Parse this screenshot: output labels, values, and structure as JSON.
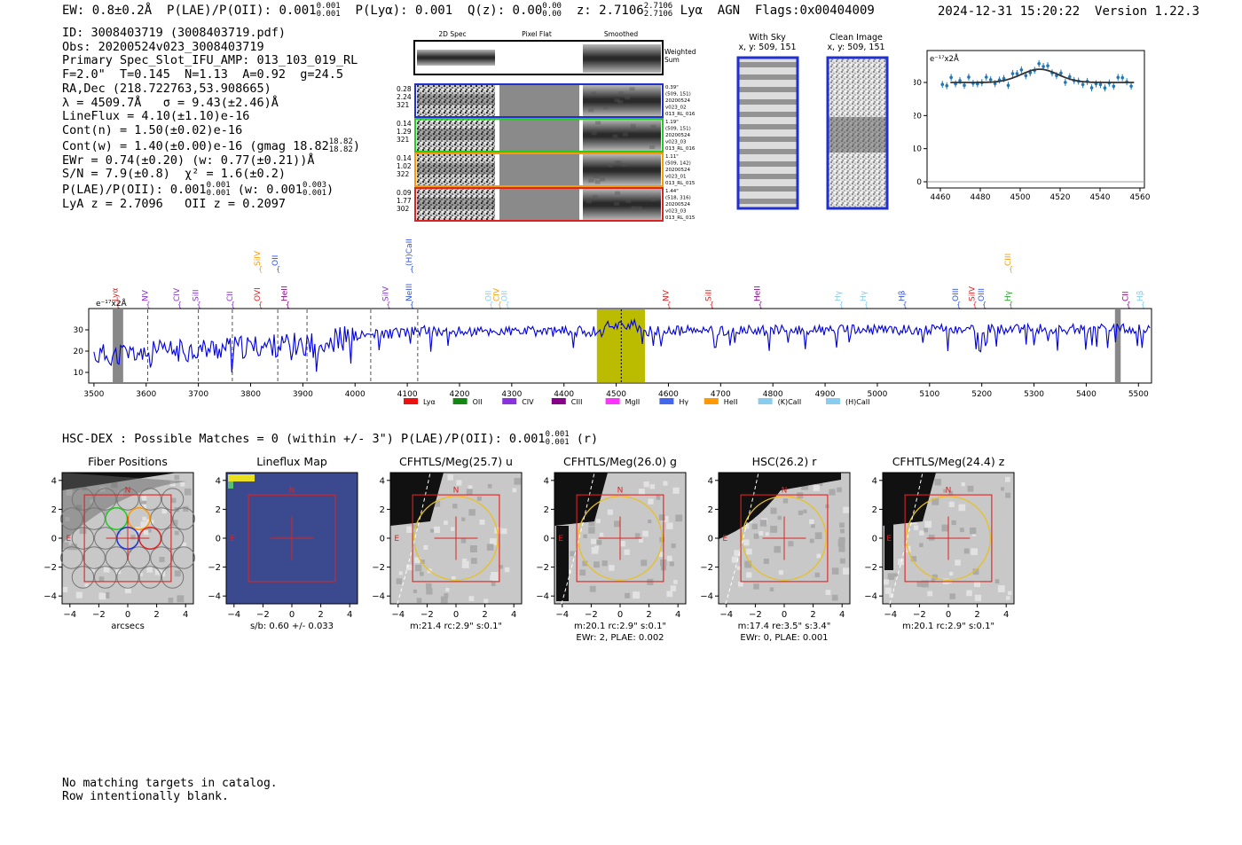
{
  "header": {
    "ew": "EW: 0.8±0.2Å",
    "plae": "P(LAE)/P(OII): 0.001",
    "plae_hi": "0.001",
    "plae_lo": "0.001",
    "plya": "P(Lyα): 0.001",
    "qz": "Q(z): 0.00",
    "qz_hi": "0.00",
    "qz_lo": "0.00",
    "z": "z: 2.7106",
    "z_hi": "2.7106",
    "z_lo": "2.7106",
    "lya": "Lyα",
    "agn": "AGN",
    "flags": "Flags:0x00404009",
    "datetime": "2024-12-31 15:20:22",
    "version": "Version 1.22.3"
  },
  "info": {
    "id": "ID: 3008403719 (3008403719.pdf)",
    "obs": "Obs: 20200524v023_3008403719",
    "primary": "Primary Spec_Slot_IFU_AMP: 013_103_019_RL",
    "fparams": "F=2.0\"  T=0.145  N=1.13  A=0.92  g=24.5",
    "radec": "RA,Dec (218.722763,53.908665)",
    "lambda": "λ = 4509.7Å   σ = 9.43(±2.46)Å",
    "lineflux": "LineFlux = 4.10(±1.10)e-16",
    "contn": "Cont(n) = 1.50(±0.02)e-16",
    "contw": "Cont(w) = 1.40(±0.00)e-16 (gmag 18.82",
    "contw_hi": "18.82",
    "contw_lo": "18.82",
    "contw_end": ")",
    "ewr": "EWr = 0.74(±0.20) (w: 0.77(±0.21))Å",
    "sn": "S/N = 7.9(±0.8)  χ² = 1.6(±0.2)",
    "plae": "P(LAE)/P(OII): 0.001",
    "plae_hi": "0.001",
    "plae_lo": "0.001",
    "plae_w": "(w: 0.001",
    "plae_w_hi": "0.003",
    "plae_w_lo": "0.001",
    "plae_w_end": ")",
    "lyaz": "LyA z = 2.7096   OII z = 0.2097"
  },
  "cutouts": {
    "col_titles": [
      "2D Spec",
      "Pixel Flat",
      "Smoothed"
    ],
    "weighted_sum": [
      "Weighted",
      "Sum"
    ],
    "rows": [
      {
        "left": [
          "0.28",
          "2.24",
          "321"
        ],
        "right": [
          "0.39\"",
          "(509, 151)",
          "20200524",
          "v023_02",
          "013_RL_016"
        ],
        "color": "#1f2fd0"
      },
      {
        "left": [
          "0.14",
          "1.29",
          "321"
        ],
        "right": [
          "1.19\"",
          "(509, 151)",
          "20200524",
          "v023_03",
          "013_RL_016"
        ],
        "color": "#22cc22"
      },
      {
        "left": [
          "0.14",
          "1.02",
          "322"
        ],
        "right": [
          "1.11\"",
          "(509, 142)",
          "20200524",
          "v023_01",
          "013_RL_015"
        ],
        "color": "#ff9900"
      },
      {
        "left": [
          "0.09",
          "1.77",
          "302"
        ],
        "right": [
          "1.44\"",
          "(518, 316)",
          "20200524",
          "v023_03",
          "013_RL_015"
        ],
        "color": "#dd2222"
      }
    ]
  },
  "sky": {
    "with_sky_title": "With Sky",
    "with_sky_coords": "x, y: 509, 151",
    "clean_title": "Clean Image",
    "clean_coords": "x, y: 509, 151"
  },
  "zoom_plot": {
    "unit": "e⁻¹⁷x2Å",
    "x_ticks": [
      "4460",
      "4480",
      "4500",
      "4520",
      "4540",
      "4560"
    ],
    "y_ticks": [
      "0",
      "10",
      "20",
      "30"
    ]
  },
  "spectrum": {
    "unit": "e⁻¹⁷x2Å",
    "x_ticks": [
      "3500",
      "3600",
      "3700",
      "3800",
      "3900",
      "4000",
      "4100",
      "4200",
      "4300",
      "4400",
      "4500",
      "4600",
      "4700",
      "4800",
      "4900",
      "5000",
      "5100",
      "5200",
      "5300",
      "5400",
      "5500"
    ],
    "y_ticks": [
      "10",
      "20",
      "30"
    ],
    "lines": [
      {
        "label": "Lyα",
        "wave": 3545,
        "color": "#dd2222",
        "high": false
      },
      {
        "label": "NV",
        "wave": 3603,
        "color": "#8833cc",
        "high": false
      },
      {
        "label": "CIV",
        "wave": 3663,
        "color": "#8833cc",
        "high": false
      },
      {
        "label": "SiII",
        "wave": 3700,
        "color": "#8833cc",
        "high": false
      },
      {
        "label": "CII",
        "wave": 3765,
        "color": "#8833cc",
        "high": false
      },
      {
        "label": "SiIV",
        "wave": 3818,
        "color": "#ff9900",
        "high": true
      },
      {
        "label": "OII",
        "wave": 3852,
        "color": "#3355dd",
        "high": true
      },
      {
        "label": "OVI",
        "wave": 3818,
        "color": "#dd2222",
        "high": false
      },
      {
        "label": "HeII",
        "wave": 3870,
        "color": "#880088",
        "high": false
      },
      {
        "label": "SiIV",
        "wave": 4063,
        "color": "#8833cc",
        "high": false
      },
      {
        "label": "(H)CaII",
        "wave": 4108,
        "color": "#3355dd",
        "high": true
      },
      {
        "label": "NeIII",
        "wave": 4108,
        "color": "#3355dd",
        "high": false
      },
      {
        "label": "OII",
        "wave": 4260,
        "color": "#88ccee",
        "high": false
      },
      {
        "label": "CIV",
        "wave": 4276,
        "color": "#ff9900",
        "high": false
      },
      {
        "label": "OII",
        "wave": 4291,
        "color": "#88ccee",
        "high": false
      },
      {
        "label": "NV",
        "wave": 4600,
        "color": "#dd2222",
        "high": false
      },
      {
        "label": "SiII",
        "wave": 4682,
        "color": "#dd2222",
        "high": false
      },
      {
        "label": "HeII",
        "wave": 4775,
        "color": "#880088",
        "high": false
      },
      {
        "label": "Hγ",
        "wave": 4930,
        "color": "#88ccee",
        "high": false
      },
      {
        "label": "Hγ",
        "wave": 4978,
        "color": "#88ccee",
        "high": false
      },
      {
        "label": "Hβ",
        "wave": 5052,
        "color": "#3355dd",
        "high": false
      },
      {
        "label": "OIII",
        "wave": 5155,
        "color": "#3355dd",
        "high": false
      },
      {
        "label": "SiIV",
        "wave": 5186,
        "color": "#dd2222",
        "high": false
      },
      {
        "label": "OIII",
        "wave": 5204,
        "color": "#3355dd",
        "high": false
      },
      {
        "label": "CIII",
        "wave": 5255,
        "color": "#ff9900",
        "high": true
      },
      {
        "label": "Hγ",
        "wave": 5255,
        "color": "#22aa22",
        "high": false
      },
      {
        "label": "CII",
        "wave": 5480,
        "color": "#880088",
        "high": false
      },
      {
        "label": "Hβ",
        "wave": 5508,
        "color": "#88ccee",
        "high": false
      }
    ],
    "legend": [
      {
        "label": "Lyα",
        "color": "#ee1111"
      },
      {
        "label": "OII",
        "color": "#118811"
      },
      {
        "label": "CIV",
        "color": "#8833dd"
      },
      {
        "label": "CIII",
        "color": "#880088"
      },
      {
        "label": "MgII",
        "color": "#ff33ff"
      },
      {
        "label": "Hγ",
        "color": "#4466ee"
      },
      {
        "label": "HeII",
        "color": "#ff9900"
      },
      {
        "label": "(K)CaII",
        "color": "#88ccee"
      },
      {
        "label": "(H)CaII",
        "color": "#88ccee"
      }
    ]
  },
  "hsc": {
    "title": "HSC-DEX : Possible Matches = 0 (within +/- 3\")  P(LAE)/P(OII): 0.001",
    "title_hi": "0.001",
    "title_lo": "0.001",
    "title_end": "(r)",
    "panels": [
      {
        "title": "Fiber Positions",
        "cap1": "arcsecs",
        "cap2": ""
      },
      {
        "title": "Lineflux Map",
        "cap1": "s/b: 0.60 +/- 0.033",
        "cap2": ""
      },
      {
        "title": "CFHTLS/Meg(25.7) u",
        "cap1": "m:21.4 rc:2.9\"  s:0.1\"",
        "cap2": ""
      },
      {
        "title": "CFHTLS/Meg(26.0) g",
        "cap1": "m:20.1 rc:2.9\"  s:0.1\"",
        "cap2": "EWr: 2, PLAE: 0.002"
      },
      {
        "title": "HSC(26.2) r",
        "cap1": "m:17.4  re:3.5\"  s:3.4\"",
        "cap2": "EWr: 0, PLAE: 0.001"
      },
      {
        "title": "CFHTLS/Meg(24.4) z",
        "cap1": "m:20.1 rc:2.9\"  s:0.1\"",
        "cap2": ""
      }
    ],
    "x_ticks": [
      "−4",
      "−2",
      "0",
      "2",
      "4"
    ],
    "y_ticks": [
      "4",
      "2",
      "0",
      "−2",
      "−4"
    ],
    "n_label": "N",
    "e_label": "E"
  },
  "footer": {
    "line1": "No matching targets in catalog.",
    "line2": "Row intentionally blank."
  }
}
